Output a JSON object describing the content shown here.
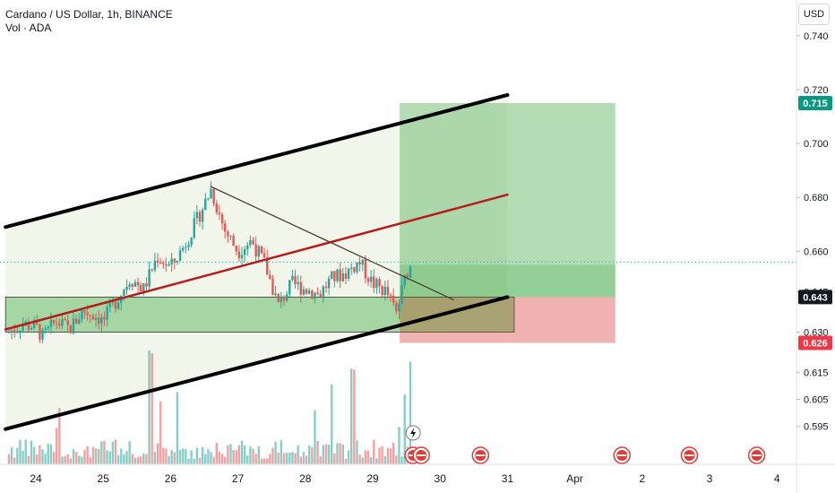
{
  "header": {
    "symbol_line": "Cardano / US Dollar, 1h, BINANCE",
    "volume_line": "Vol · ADA"
  },
  "toolbar": {
    "currency_button": "USD"
  },
  "colors": {
    "up": "#26a69a",
    "down": "#ef5350",
    "channel": "#000000",
    "midline": "#b71c1c",
    "target_zone": "#4caf50",
    "stop_zone": "#e57373",
    "support_zone": "#66bb6a",
    "current_price_badge": "#131722",
    "target_badge": "#089981",
    "stop_badge": "#f23645"
  },
  "chart_data": {
    "type": "candlestick",
    "title": "Cardano / US Dollar, 1h, BINANCE",
    "y_axis": {
      "ticks": [
        "0.740",
        "0.720",
        "0.700",
        "0.680",
        "0.660",
        "0.645",
        "0.630",
        "0.615",
        "0.605",
        "0.595"
      ],
      "tick_values": [
        0.74,
        0.72,
        0.7,
        0.68,
        0.66,
        0.645,
        0.63,
        0.615,
        0.605,
        0.595
      ]
    },
    "x_axis": {
      "ticks": [
        "24",
        "25",
        "26",
        "27",
        "28",
        "29",
        "30",
        "31",
        "Apr",
        "2",
        "3",
        "4"
      ],
      "tick_days": [
        24,
        25,
        26,
        27,
        28,
        29,
        30,
        31,
        32,
        33,
        34,
        35
      ],
      "range": [
        23.55,
        35.2
      ]
    },
    "price_badges": [
      {
        "label": "0.715",
        "value": 0.715,
        "role": "target"
      },
      {
        "label": "0.643",
        "value": 0.643,
        "role": "current"
      },
      {
        "label": "0.626",
        "value": 0.626,
        "role": "stop"
      }
    ],
    "current_price": 0.643,
    "last_close_line": 0.656,
    "ascending_channel": {
      "upper": {
        "from": [
          23.55,
          0.669
        ],
        "to": [
          31.0,
          0.718
        ]
      },
      "lower": {
        "from": [
          23.55,
          0.594
        ],
        "to": [
          31.0,
          0.643
        ]
      },
      "middle": {
        "from": [
          23.55,
          0.631
        ],
        "to": [
          31.0,
          0.681
        ]
      }
    },
    "descending_trendline": {
      "from": [
        26.6,
        0.684
      ],
      "to": [
        30.2,
        0.642
      ]
    },
    "support_zone": {
      "from_day": 23.55,
      "to_day": 31.1,
      "low": 0.63,
      "high": 0.643
    },
    "long_position": {
      "from_day": 29.4,
      "to_day": 32.6,
      "entry": 0.643,
      "target": 0.715,
      "stop": 0.626,
      "entry_band": 0.655
    },
    "price_range": {
      "from_day": 23.55,
      "to_day": 29.6,
      "points": [
        [
          23.6,
          0.63
        ],
        [
          23.8,
          0.633
        ],
        [
          24.0,
          0.632
        ],
        [
          24.1,
          0.628
        ],
        [
          24.3,
          0.634
        ],
        [
          24.5,
          0.631
        ],
        [
          24.7,
          0.638
        ],
        [
          24.9,
          0.636
        ],
        [
          25.0,
          0.634
        ],
        [
          25.2,
          0.642
        ],
        [
          25.4,
          0.65
        ],
        [
          25.6,
          0.646
        ],
        [
          25.8,
          0.658
        ],
        [
          26.0,
          0.654
        ],
        [
          26.2,
          0.662
        ],
        [
          26.4,
          0.672
        ],
        [
          26.6,
          0.683
        ],
        [
          26.8,
          0.668
        ],
        [
          27.0,
          0.66
        ],
        [
          27.2,
          0.664
        ],
        [
          27.4,
          0.655
        ],
        [
          27.6,
          0.64
        ],
        [
          27.8,
          0.648
        ],
        [
          28.0,
          0.646
        ],
        [
          28.2,
          0.644
        ],
        [
          28.4,
          0.65
        ],
        [
          28.6,
          0.652
        ],
        [
          28.8,
          0.656
        ],
        [
          29.0,
          0.648
        ],
        [
          29.2,
          0.645
        ],
        [
          29.35,
          0.637
        ],
        [
          29.5,
          0.652
        ],
        [
          29.6,
          0.656
        ]
      ]
    },
    "volume": {
      "spike_days": [
        25.7,
        28.7,
        29.55
      ]
    },
    "event_markers": [
      30.6,
      32.7,
      33.7,
      34.7
    ]
  }
}
